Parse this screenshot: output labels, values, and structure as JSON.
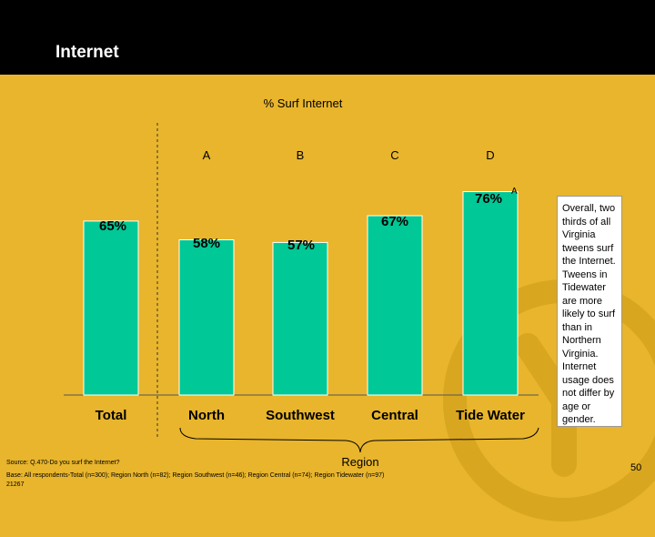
{
  "header": {
    "title": "Internet"
  },
  "chart_data": {
    "type": "bar",
    "title": "% Surf Internet",
    "categories": [
      "Total",
      "North",
      "Southwest",
      "Central",
      "Tide Water"
    ],
    "values": [
      65,
      58,
      57,
      67,
      76
    ],
    "value_labels": [
      "65%",
      "58%",
      "57%",
      "67%",
      "76%"
    ],
    "column_letters": [
      "",
      "A",
      "B",
      "C",
      "D"
    ],
    "significance": [
      "",
      "",
      "",
      "",
      "A"
    ],
    "xlabel": "Region",
    "ylabel": "",
    "ylim": [
      0,
      100
    ],
    "grid": false,
    "bar_color": "#00c896"
  },
  "note": "Overall, two thirds of all Virginia tweens surf the Internet. Tweens in Tidewater are more likely to surf than in Northern Virginia. Internet usage does not differ by age or gender.",
  "footer": {
    "source": "Source: Q.470-Do you surf the Internet?",
    "base": "Base: All respondents-Total (n=300); Region North (n=82); Region Southwest (n=46); Region Central (n=74); Region Tidewater (n=97)",
    "code": "21267"
  },
  "page_number": "50",
  "colors": {
    "background": "#e8b52c",
    "header": "#000000",
    "bar": "#00c896"
  }
}
